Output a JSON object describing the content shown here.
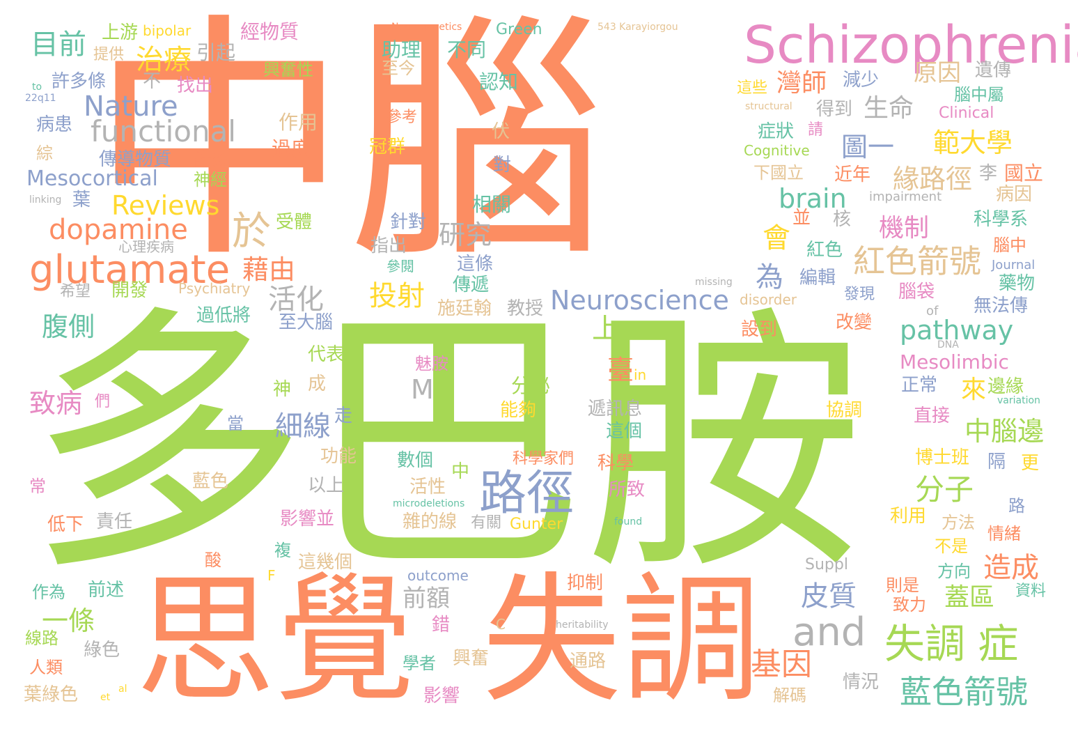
{
  "colors": {
    "orange": "#fc8d62",
    "green": "#a6d854",
    "blue": "#8da0cb",
    "pink": "#e78ac3",
    "yellow": "#ffd92f",
    "teal": "#66c2a5",
    "tan": "#e5c494",
    "gray": "#b3b3b3"
  },
  "words": {
    "w001": "中腦",
    "w002": "多巴胺",
    "w003": "思覺",
    "w004": "失調",
    "w005": "Schizophrenia",
    "w006": "glutamate",
    "w007": "路徑",
    "w008": "失調 症",
    "w009": "藍色箭號",
    "w010": "紅色箭號",
    "w011": "Neuroscience",
    "w012": "functional",
    "w013": "dopamine",
    "w014": "Reviews",
    "w015": "Nature",
    "w016": "Mesocortical",
    "w017": "pathway",
    "w018": "brain",
    "w019": "and",
    "w020": "Mesolimbic",
    "w021": "目前",
    "w022": "治療",
    "w023": "於",
    "w024": "藉由",
    "w025": "活化",
    "w026": "腹側",
    "w027": "投射",
    "w028": "細線",
    "w029": "致病",
    "w030": "皮質",
    "w031": "前額",
    "w032": "一條",
    "w033": "基因",
    "w034": "中腦邊",
    "w035": "分子",
    "w036": "造成",
    "w037": "蓋區",
    "w038": "緣路徑",
    "w039": "範大學",
    "w040": "圖一",
    "w041": "機制",
    "w042": "研究",
    "w043": "灣師",
    "w044": "生命",
    "w045": "原因",
    "w046": "會",
    "w047": "為",
    "w048": "上",
    "w049": "臺",
    "w050": "來",
    "w051": "M",
    "w052": "國立",
    "w053": "上游",
    "w054": "bipolar",
    "w055": "經物質",
    "w056": "Neurogenetics",
    "w057": "Green",
    "w058": "543 Karayiorgou",
    "w059": "提供",
    "w060": "引起",
    "w061": "興奮性",
    "w062": "助理",
    "w063": "不同",
    "w064": "許多條",
    "w065": "不",
    "w066": "找出",
    "w067": "至今",
    "w068": "認知",
    "w069": "減少",
    "w070": "遺傳",
    "w071": "這些",
    "w072": "腦中屬",
    "w073": "to",
    "w074": "22q11",
    "w075": "病患",
    "w076": "作用",
    "w077": "參考",
    "w078": "structural",
    "w079": "得到",
    "w080": "Clinical",
    "w081": "症狀",
    "w082": "請",
    "w083": "伏",
    "w084": "綜",
    "w085": "過度",
    "w086": "冠群",
    "w087": "Cognitive",
    "w088": "傳導物質",
    "w089": "許多",
    "w090": "神經",
    "w091": "對",
    "w092": "下國立",
    "w093": "近年",
    "w094": "李",
    "w095": "病因",
    "w096": "linking",
    "w097": "葉",
    "w098": "impairment",
    "w099": "相關",
    "w100": "受體",
    "w101": "針對",
    "w102": "並",
    "w103": "核",
    "w104": "科學系",
    "w105": "心理疾病",
    "w106": "指出",
    "w107": "紅色",
    "w108": "腦中",
    "w109": "參閱",
    "w110": "這條",
    "w111": "Journal",
    "w112": "希望",
    "w113": "開發",
    "w114": "Psychiatry",
    "w115": "missing",
    "w116": "傳遞",
    "w117": "編輯",
    "w118": "藥物",
    "w119": "disorder",
    "w120": "發現",
    "w121": "腦袋",
    "w122": "無法傳",
    "w123": "過低將",
    "w124": "至大腦",
    "w125": "施廷翰",
    "w126": "教授",
    "w127": "of",
    "w128": "設到",
    "w129": "改變",
    "w130": "代表",
    "w131": "魅胺",
    "w132": "DNA",
    "w133": "成",
    "w134": "in",
    "w135": "分泌",
    "w136": "正常",
    "w137": "邊緣",
    "w138": "神",
    "w139": "們",
    "w140": "variation",
    "w141": "走",
    "w142": "能夠",
    "w143": "遞訊息",
    "w144": "協調",
    "w145": "當",
    "w146": "直接",
    "w147": "這個",
    "w148": "功能",
    "w149": "數個",
    "w150": "科學家們",
    "w151": "科學",
    "w152": "博士班",
    "w153": "常",
    "w154": "藍色",
    "w155": "中",
    "w156": "隔",
    "w157": "更",
    "w158": "以上",
    "w159": "活性",
    "w160": "所致",
    "w161": "路",
    "w162": "microdeletions",
    "w163": "低下",
    "w164": "責任",
    "w165": "影響並",
    "w166": "雜的線",
    "w167": "有關",
    "w168": "Gunter",
    "w169": "found",
    "w170": "利用",
    "w171": "方法",
    "w172": "情緒",
    "w173": "酸",
    "w174": "複",
    "w175": "這幾個",
    "w176": "Suppl",
    "w177": "不是",
    "w178": "F",
    "w179": "outcome",
    "w180": "方向",
    "w181": "作為",
    "w182": "前述",
    "w183": "抑制",
    "w184": "則是",
    "w185": "致力",
    "w186": "資料",
    "w187": "錯",
    "w188": "C",
    "w189": "heritability",
    "w190": "線路",
    "w191": "綠色",
    "w192": "學者",
    "w193": "興奮",
    "w194": "通路",
    "w195": "人類",
    "w196": "情況",
    "w197": "葉綠色",
    "w198": "et",
    "w199": "al",
    "w200": "影響",
    "w201": "解碼"
  }
}
